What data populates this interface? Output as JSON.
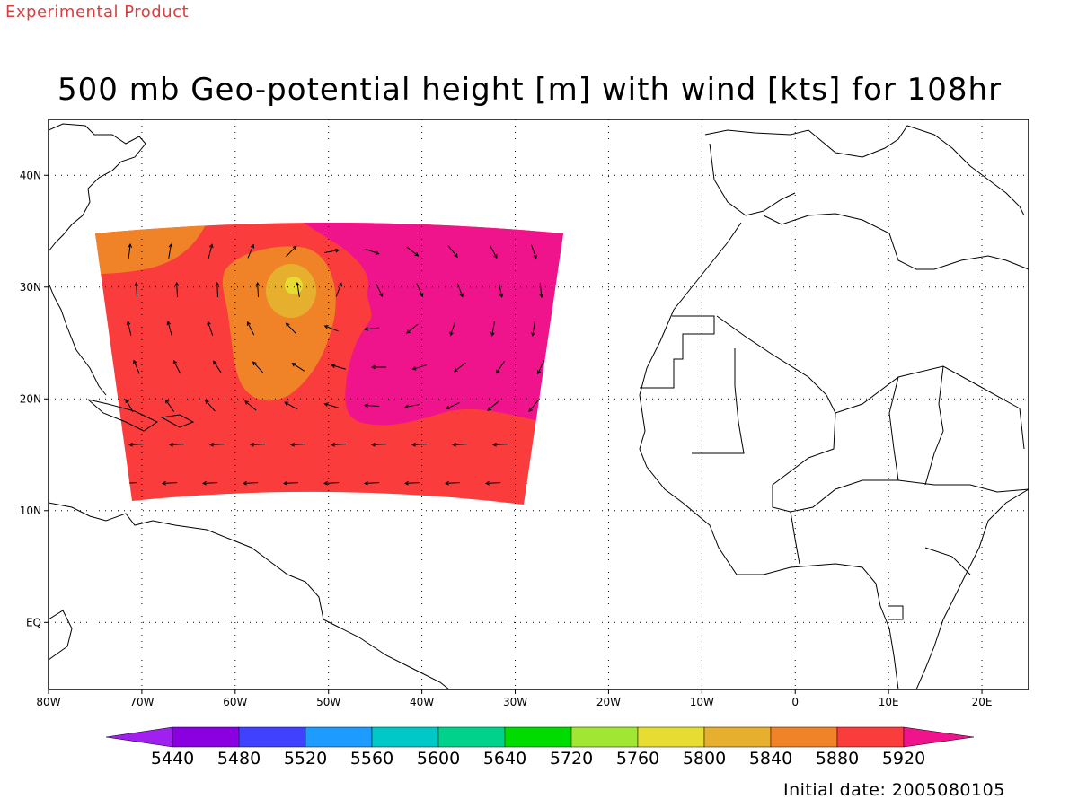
{
  "header": {
    "product_label": "Experimental Product",
    "title": "500 mb Geo-potential height [m] with wind [kts] for 108hr"
  },
  "footer": {
    "initial_date": "Initial date: 2005080105"
  },
  "map": {
    "lon_range": [
      -80,
      25
    ],
    "lat_range": [
      -6,
      45
    ],
    "lon_ticks": [
      "80W",
      "70W",
      "60W",
      "50W",
      "40W",
      "30W",
      "20W",
      "10W",
      "0",
      "10E",
      "20E"
    ],
    "lat_ticks": [
      "EQ",
      "10N",
      "20N",
      "30N",
      "40N"
    ],
    "grid": "dotted"
  },
  "colorbar": {
    "labels": [
      "5440",
      "5480",
      "5520",
      "5560",
      "5600",
      "5640",
      "5720",
      "5760",
      "5800",
      "5840",
      "5880",
      "5920"
    ],
    "colors": [
      "#a020f0",
      "#8a00e0",
      "#4040ff",
      "#1e9bff",
      "#00c8c8",
      "#00d28c",
      "#00dc00",
      "#a0e632",
      "#e6dc32",
      "#e6af2d",
      "#f08228",
      "#fa3c3c",
      "#f0148c"
    ]
  },
  "chart_data": {
    "type": "heatmap",
    "field": "500 mb geopotential height",
    "regions": [
      {
        "level": "5880-5920",
        "color": "#fa3c3c",
        "extent": "domain 75W-25W, 12N-36N (base)"
      },
      {
        "level": "5840-5880",
        "color": "#f08228",
        "extent": "NW corner near 75W-70W 32N-35N; inner ridge 60W-48W 21N-33N; far NE corner"
      },
      {
        "level": "5800-5840",
        "color": "#e6dc32",
        "extent": "ridge centre near 54W 30.5N"
      },
      {
        "level": ">5920",
        "color": "#f0148c",
        "extent": "eastern high 45W-26W 18N-37N"
      }
    ],
    "vectors": "wind arrows in kts on regular grid"
  }
}
